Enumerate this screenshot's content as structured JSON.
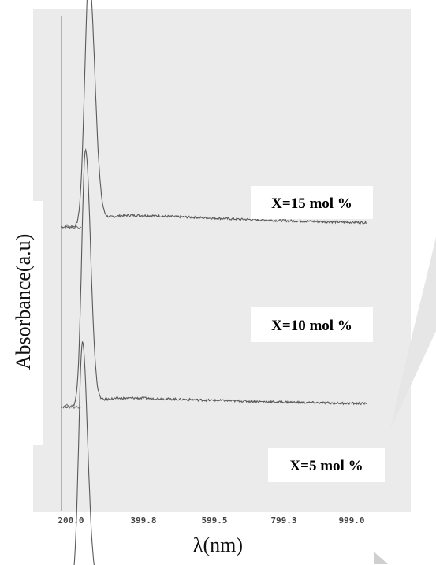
{
  "chart_data": {
    "type": "line",
    "xlabel": "λ(nm)",
    "ylabel": "Absorbance(a.u)",
    "xlim": [
      200,
      900
    ],
    "x_ticks": [
      "200.0",
      "399.8",
      "599.5",
      "799.3",
      "999.0"
    ],
    "grid": false,
    "series": [
      {
        "name": "X=15 mol %",
        "peak_x": 263,
        "peak_height": 0.39,
        "width": 25,
        "tail_level": 0.024,
        "baseline": 0.0
      },
      {
        "name": "X=10 mol %",
        "peak_x": 255,
        "peak_height": 0.4,
        "width": 22,
        "tail_level": 0.018,
        "baseline": -0.28
      },
      {
        "name": "X=5 mol %",
        "peak_x": 248,
        "peak_height": 0.38,
        "width": 22,
        "tail_level": 0.016,
        "baseline": -0.56
      }
    ],
    "annotations": [
      "X=15 mol %",
      "X=10 mol %",
      "X=5 mol %"
    ]
  }
}
